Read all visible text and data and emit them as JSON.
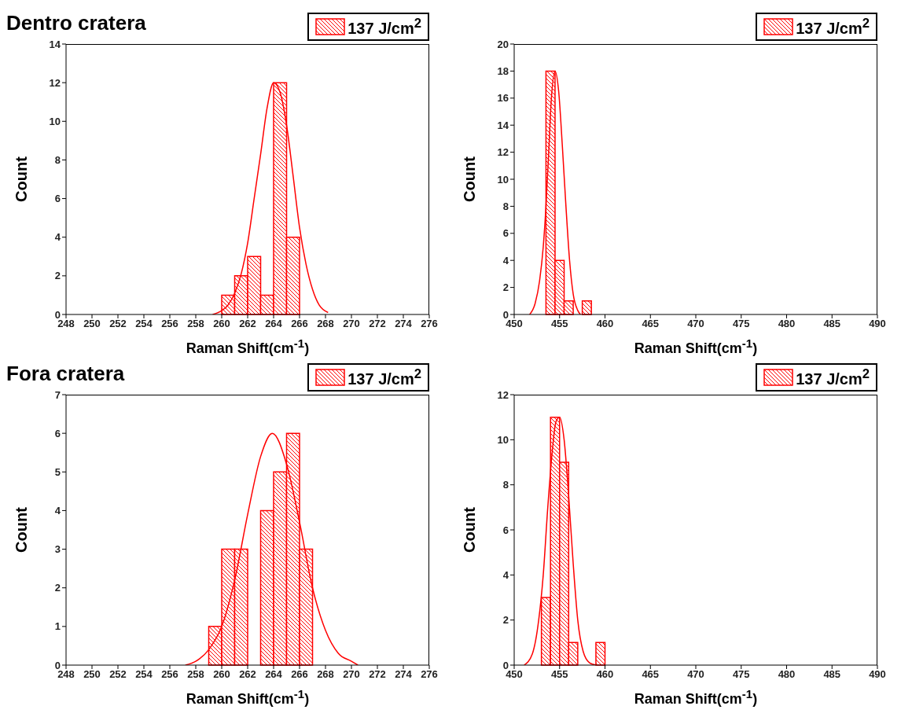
{
  "chart_data": [
    {
      "type": "histogram",
      "title": "Dentro cratera",
      "xlabel": "Raman Shift(cm$^{-1}$)",
      "ylabel": "Count",
      "legend": "top right",
      "xlim": [
        248,
        276
      ],
      "xticks": [
        248,
        250,
        252,
        254,
        256,
        258,
        260,
        262,
        264,
        266,
        268,
        270,
        272,
        274,
        276
      ],
      "ylim": [
        0,
        14
      ],
      "yticks": [
        0,
        2,
        4,
        6,
        8,
        10,
        12,
        14
      ],
      "bins": [
        260,
        261,
        262,
        263,
        264,
        265,
        266
      ],
      "series": [
        {
          "name": "137 J/cm$^{2}$",
          "color": "#ff0000",
          "values": [
            1,
            2,
            3,
            1,
            12,
            4
          ]
        },
        {
          "type": "line",
          "color": "#ff0000",
          "x": [
            259.3,
            260,
            260.5,
            261,
            261.5,
            262,
            262.5,
            263,
            263.5,
            264,
            264.5,
            265,
            265.5,
            266,
            266.5,
            267,
            267.5,
            268.2
          ],
          "values": [
            0,
            0.2,
            0.5,
            1.1,
            2.1,
            3.7,
            6,
            8.3,
            10.7,
            12,
            11.5,
            9.8,
            7.2,
            4.5,
            2.6,
            1.3,
            0.5,
            0.1
          ]
        }
      ]
    },
    {
      "type": "histogram",
      "xlabel": "Raman Shift(cm$^{-1}$)",
      "ylabel": "Count",
      "legend": "top right",
      "xlim": [
        450,
        490
      ],
      "xticks": [
        450,
        455,
        460,
        465,
        470,
        475,
        480,
        485,
        490
      ],
      "ylim": [
        0,
        20
      ],
      "yticks": [
        0,
        2,
        4,
        6,
        8,
        10,
        12,
        14,
        16,
        18,
        20
      ],
      "bins": [
        453.5,
        454.5,
        455.5,
        456.5,
        457.5,
        458.5
      ],
      "series": [
        {
          "name": "137 J/cm$^{2}$",
          "color": "#ff0000",
          "values": [
            18,
            4,
            1,
            0,
            1
          ]
        },
        {
          "type": "line",
          "color": "#ff0000",
          "x": [
            451.7,
            452.3,
            452.8,
            453.2,
            453.5,
            453.8,
            454.1,
            454.5,
            454.9,
            455.3,
            455.7,
            456.1,
            456.5,
            457,
            457.3
          ],
          "values": [
            0,
            0.8,
            2.5,
            5,
            8,
            12,
            16,
            18,
            16.5,
            12.5,
            8,
            4,
            1.5,
            0.3,
            0
          ]
        }
      ]
    },
    {
      "type": "histogram",
      "title": "Fora cratera",
      "xlabel": "Raman Shift(cm$^{-1}$)",
      "ylabel": "Count",
      "legend": "top right",
      "xlim": [
        248,
        276
      ],
      "xticks": [
        248,
        250,
        252,
        254,
        256,
        258,
        260,
        262,
        264,
        266,
        268,
        270,
        272,
        274,
        276
      ],
      "ylim": [
        0,
        7
      ],
      "yticks": [
        0,
        1,
        2,
        3,
        4,
        5,
        6,
        7
      ],
      "bins": [
        259,
        260,
        261,
        262,
        263,
        264,
        265,
        266,
        267
      ],
      "series": [
        {
          "name": "137 J/cm$^{2}$",
          "color": "#ff0000",
          "values": [
            1,
            3,
            3,
            0,
            4,
            5,
            6,
            3
          ]
        },
        {
          "type": "line",
          "color": "#ff0000",
          "x": [
            257.2,
            258,
            259,
            260,
            261,
            262,
            263,
            263.9,
            265,
            266,
            267,
            268,
            269,
            270,
            270.5
          ],
          "values": [
            0,
            0.1,
            0.4,
            1,
            2.2,
            3.9,
            5.4,
            6,
            5.2,
            3.7,
            2,
            0.9,
            0.3,
            0.1,
            0
          ]
        }
      ]
    },
    {
      "type": "histogram",
      "xlabel": "Raman Shift(cm$^{-1}$)",
      "ylabel": "Count",
      "legend": "top right",
      "xlim": [
        450,
        490
      ],
      "xticks": [
        450,
        455,
        460,
        465,
        470,
        475,
        480,
        485,
        490
      ],
      "ylim": [
        0,
        12
      ],
      "yticks": [
        0,
        2,
        4,
        6,
        8,
        10,
        12
      ],
      "bins": [
        453,
        454,
        455,
        456,
        457,
        458,
        459,
        460
      ],
      "series": [
        {
          "name": "137 J/cm$^{2}$",
          "color": "#ff0000",
          "values": [
            3,
            11,
            9,
            1,
            0,
            0,
            1
          ]
        },
        {
          "type": "line",
          "color": "#ff0000",
          "x": [
            451.1,
            452,
            452.7,
            453.2,
            453.7,
            454.2,
            454.6,
            455,
            455.5,
            456,
            456.5,
            457,
            457.6,
            458.3,
            459
          ],
          "values": [
            0,
            0.5,
            2,
            4,
            7,
            9.5,
            10.8,
            11,
            10,
            7.5,
            4.5,
            2,
            0.6,
            0.1,
            0
          ]
        }
      ]
    }
  ]
}
